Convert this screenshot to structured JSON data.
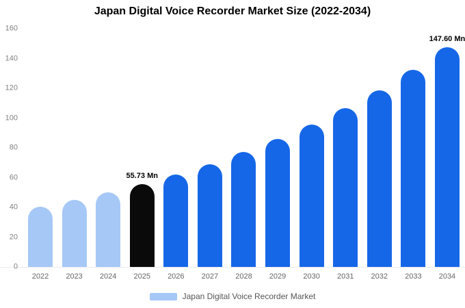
{
  "chart_data": {
    "type": "bar",
    "title": "Japan Digital Voice Recorder Market Size (2022-2034)",
    "categories": [
      "2022",
      "2023",
      "2024",
      "2025",
      "2026",
      "2027",
      "2028",
      "2029",
      "2030",
      "2031",
      "2032",
      "2033",
      "2034"
    ],
    "values": [
      40.3,
      44.9,
      50.0,
      55.73,
      62.1,
      69.2,
      77.1,
      85.9,
      95.7,
      106.6,
      118.8,
      132.4,
      147.6
    ],
    "bar_colors": [
      "#a6c8f7",
      "#a6c8f7",
      "#a6c8f7",
      "#0a0a0a",
      "#1667e8",
      "#1667e8",
      "#1667e8",
      "#1667e8",
      "#1667e8",
      "#1667e8",
      "#1667e8",
      "#1667e8",
      "#1667e8"
    ],
    "ylim": [
      0,
      160
    ],
    "yticks": [
      0,
      20,
      40,
      60,
      80,
      100,
      120,
      140,
      160
    ],
    "grid": false,
    "annotations": [
      {
        "category": "2025",
        "text": "55.73 Mn"
      },
      {
        "category": "2034",
        "text": "147.60 Mn"
      }
    ],
    "legend_position": "bottom",
    "legend": [
      {
        "label": "Japan Digital Voice Recorder Market",
        "color": "#a6c8f7"
      }
    ],
    "xlabel": "",
    "ylabel": ""
  },
  "colors": {
    "historic": "#a6c8f7",
    "highlight": "#0a0a0a",
    "forecast": "#1667e8"
  }
}
